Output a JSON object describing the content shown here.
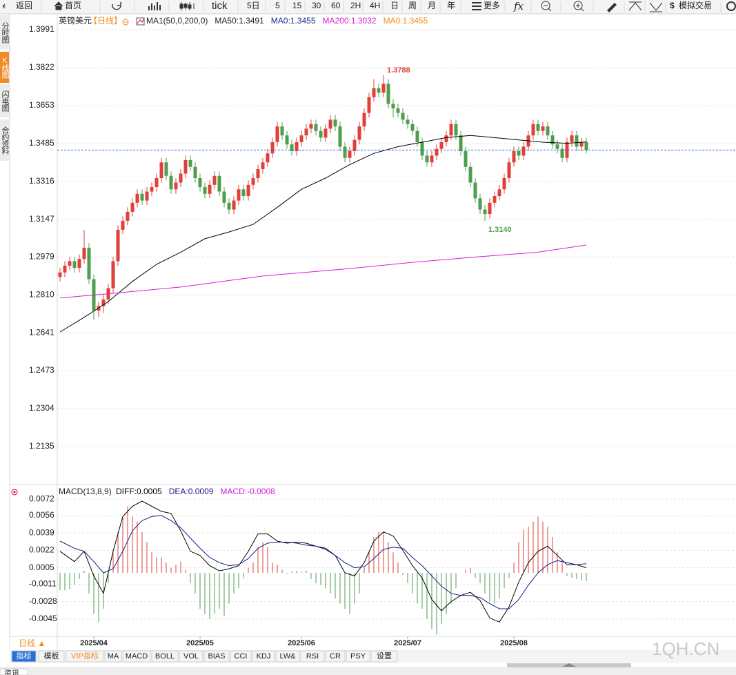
{
  "toolbar": {
    "back": "返回",
    "home": "首页",
    "tick": "tick",
    "periods": [
      "5日",
      "5",
      "15",
      "30",
      "60",
      "2H",
      "4H",
      "日",
      "周",
      "月",
      "年"
    ],
    "more": "更多",
    "sim": "模拟交易"
  },
  "side_tabs": [
    "分时图",
    "K线图",
    "闪电图",
    "合约资料"
  ],
  "chart_data": [
    {
      "type": "candlestick",
      "title": "英镑美元",
      "period": "【日线】",
      "legend": [
        {
          "label": "MA1(50,0,200,0)",
          "color": "#222222"
        },
        {
          "label": "MA50:1.3491",
          "color": "#222222"
        },
        {
          "label": "MA0:1.3455",
          "color": "#1e2a8c"
        },
        {
          "label": "MA200:1.3032",
          "color": "#d41ed4"
        },
        {
          "label": "MA0:1.3455",
          "color": "#f08a24"
        }
      ],
      "up_color": "#e0403a",
      "down_color": "#4e9e4e",
      "xlim": [
        -0.57,
        140
      ],
      "ylim": [
        1.1972,
        1.4046
      ],
      "grid": true,
      "yticks": [
        1.3991,
        1.3822,
        1.3653,
        1.3485,
        1.3316,
        1.3147,
        1.2979,
        {
          "value": 1.281,
          "label": "1.2810"
        },
        1.2641,
        1.2473,
        1.2304,
        1.2135
      ],
      "xticks": [
        {
          "value": 7,
          "label": "2025/04"
        },
        {
          "value": 29,
          "label": "2025/05"
        },
        {
          "value": 50,
          "label": "2025/06"
        },
        {
          "value": 72,
          "label": "2025/07"
        },
        {
          "value": 94,
          "label": "2025/08"
        }
      ],
      "open": [
        1.289,
        1.291,
        1.294,
        1.296,
        1.293,
        1.297,
        1.302,
        1.288,
        1.274,
        1.276,
        1.279,
        1.284,
        1.296,
        1.31,
        1.314,
        1.318,
        1.322,
        1.326,
        1.323,
        1.327,
        1.329,
        1.333,
        1.34,
        1.334,
        1.328,
        1.331,
        1.335,
        1.341,
        1.338,
        1.333,
        1.329,
        1.326,
        1.33,
        1.334,
        1.327,
        1.322,
        1.319,
        1.323,
        1.328,
        1.325,
        1.33,
        1.333,
        1.337,
        1.34,
        1.344,
        1.349,
        1.356,
        1.352,
        1.348,
        1.345,
        1.349,
        1.352,
        1.355,
        1.357,
        1.354,
        1.351,
        1.355,
        1.359,
        1.356,
        1.347,
        1.342,
        1.345,
        1.35,
        1.356,
        1.362,
        1.369,
        1.373,
        1.371,
        1.375,
        1.366,
        1.364,
        1.362,
        1.359,
        1.357,
        1.354,
        1.349,
        1.343,
        1.34,
        1.343,
        1.346,
        1.349,
        1.352,
        1.357,
        1.352,
        1.345,
        1.338,
        1.331,
        1.324,
        1.319,
        1.317,
        1.322,
        1.325,
        1.328,
        1.333,
        1.34,
        1.345,
        1.343,
        1.347,
        1.352,
        1.357,
        1.354,
        1.356,
        1.352,
        1.348,
        1.346,
        1.342,
        1.349,
        1.352,
        1.347,
        1.349
      ],
      "high": [
        1.293,
        1.296,
        1.298,
        1.298,
        1.299,
        1.31,
        1.304,
        1.29,
        1.278,
        1.281,
        1.286,
        1.298,
        1.312,
        1.316,
        1.32,
        1.324,
        1.328,
        1.328,
        1.329,
        1.331,
        1.335,
        1.342,
        1.342,
        1.336,
        1.333,
        1.337,
        1.343,
        1.343,
        1.34,
        1.335,
        1.331,
        1.332,
        1.336,
        1.336,
        1.329,
        1.324,
        1.325,
        1.33,
        1.33,
        1.332,
        1.335,
        1.339,
        1.342,
        1.346,
        1.351,
        1.358,
        1.358,
        1.354,
        1.35,
        1.351,
        1.354,
        1.357,
        1.359,
        1.359,
        1.356,
        1.357,
        1.361,
        1.361,
        1.358,
        1.349,
        1.347,
        1.352,
        1.358,
        1.364,
        1.371,
        1.377,
        1.375,
        1.3788,
        1.377,
        1.368,
        1.366,
        1.364,
        1.361,
        1.359,
        1.356,
        1.351,
        1.345,
        1.345,
        1.348,
        1.351,
        1.354,
        1.359,
        1.359,
        1.354,
        1.347,
        1.34,
        1.333,
        1.326,
        1.321,
        1.324,
        1.327,
        1.33,
        1.335,
        1.342,
        1.347,
        1.347,
        1.349,
        1.354,
        1.359,
        1.359,
        1.358,
        1.358,
        1.354,
        1.35,
        1.348,
        1.351,
        1.354,
        1.354,
        1.351,
        1.351
      ],
      "low": [
        1.287,
        1.289,
        1.292,
        1.291,
        1.291,
        1.295,
        1.286,
        1.27,
        1.271,
        1.273,
        1.277,
        1.282,
        1.294,
        1.308,
        1.312,
        1.316,
        1.32,
        1.321,
        1.321,
        1.325,
        1.327,
        1.331,
        1.332,
        1.326,
        1.326,
        1.329,
        1.333,
        1.336,
        1.331,
        1.327,
        1.324,
        1.324,
        1.328,
        1.325,
        1.32,
        1.317,
        1.317,
        1.321,
        1.323,
        1.323,
        1.328,
        1.331,
        1.335,
        1.338,
        1.342,
        1.347,
        1.35,
        1.346,
        1.343,
        1.343,
        1.347,
        1.35,
        1.353,
        1.352,
        1.349,
        1.349,
        1.353,
        1.354,
        1.345,
        1.34,
        1.34,
        1.343,
        1.348,
        1.354,
        1.36,
        1.367,
        1.369,
        1.369,
        1.364,
        1.36,
        1.36,
        1.357,
        1.355,
        1.352,
        1.347,
        1.341,
        1.338,
        1.338,
        1.341,
        1.344,
        1.347,
        1.35,
        1.35,
        1.343,
        1.336,
        1.329,
        1.322,
        1.317,
        1.314,
        1.315,
        1.32,
        1.323,
        1.326,
        1.331,
        1.338,
        1.341,
        1.341,
        1.345,
        1.35,
        1.352,
        1.352,
        1.35,
        1.346,
        1.344,
        1.34,
        1.34,
        1.347,
        1.345,
        1.345,
        1.344
      ],
      "close": [
        1.291,
        1.294,
        1.296,
        1.293,
        1.297,
        1.302,
        1.288,
        1.274,
        1.276,
        1.279,
        1.284,
        1.296,
        1.31,
        1.314,
        1.318,
        1.322,
        1.326,
        1.323,
        1.327,
        1.329,
        1.333,
        1.34,
        1.334,
        1.328,
        1.331,
        1.335,
        1.341,
        1.338,
        1.333,
        1.329,
        1.326,
        1.33,
        1.334,
        1.327,
        1.322,
        1.319,
        1.323,
        1.328,
        1.325,
        1.33,
        1.333,
        1.337,
        1.34,
        1.344,
        1.349,
        1.356,
        1.352,
        1.348,
        1.345,
        1.349,
        1.352,
        1.355,
        1.357,
        1.354,
        1.351,
        1.355,
        1.359,
        1.356,
        1.347,
        1.342,
        1.345,
        1.35,
        1.356,
        1.362,
        1.369,
        1.373,
        1.371,
        1.375,
        1.366,
        1.364,
        1.362,
        1.359,
        1.357,
        1.354,
        1.349,
        1.343,
        1.34,
        1.343,
        1.346,
        1.349,
        1.352,
        1.357,
        1.352,
        1.345,
        1.338,
        1.331,
        1.324,
        1.319,
        1.317,
        1.322,
        1.325,
        1.328,
        1.333,
        1.34,
        1.345,
        1.343,
        1.347,
        1.352,
        1.357,
        1.354,
        1.356,
        1.352,
        1.348,
        1.346,
        1.342,
        1.349,
        1.352,
        1.347,
        1.349,
        1.3455
      ],
      "overlays": [
        {
          "color": "#000000",
          "x": [
            0,
            5,
            10,
            15,
            20,
            25,
            30,
            35,
            40,
            45,
            50,
            55,
            60,
            65,
            70,
            75,
            80,
            85,
            90,
            95,
            100,
            105,
            109
          ],
          "values": [
            1.2645,
            1.271,
            1.278,
            1.287,
            1.2946,
            1.3,
            1.306,
            1.309,
            1.3124,
            1.32,
            1.328,
            1.333,
            1.339,
            1.344,
            1.347,
            1.349,
            1.351,
            1.352,
            1.351,
            1.35,
            1.349,
            1.3485,
            1.3491
          ]
        },
        {
          "color": "#d41ed4",
          "x": [
            0,
            10,
            25,
            42,
            59,
            73,
            87,
            99,
            109
          ],
          "values": [
            1.2796,
            1.2815,
            1.2845,
            1.2894,
            1.2925,
            1.2955,
            1.298,
            1.3,
            1.3032
          ]
        }
      ],
      "level_line": {
        "value": 1.3455,
        "color": "#2a6fd6"
      },
      "annotations": [
        {
          "label": "1.3788",
          "value": 1.3788,
          "color": "#e0403a"
        },
        {
          "label": "1.3140",
          "value": 1.314,
          "color": "#4e9e4e"
        }
      ]
    },
    {
      "type": "macd",
      "title": "MACD(13,8,9)",
      "xlim": [
        -0.57,
        140
      ],
      "ylim": [
        -0.00606,
        0.00842
      ],
      "grid": true,
      "yticks": [
        0.0072,
        0.0056,
        0.0039,
        0.0022,
        0.0005,
        -0.0011,
        -0.0028,
        -0.0045
      ],
      "up_color": "#e0403a",
      "down_color": "#4e9e4e",
      "series": [
        {
          "name": "DIFF:0.0005",
          "color": "#000000",
          "x": [
            0,
            3,
            5,
            7,
            9,
            11,
            13,
            15,
            17,
            19,
            21,
            23,
            25,
            27,
            29,
            31,
            33,
            35,
            37,
            39,
            41,
            43,
            45,
            47,
            49,
            51,
            53,
            55,
            57,
            59,
            61,
            63,
            65,
            67,
            69,
            71,
            73,
            75,
            77,
            79,
            81,
            83,
            85,
            87,
            89,
            91,
            93,
            95,
            97,
            99,
            101,
            103,
            105,
            107,
            109
          ],
          "values": [
            0.0021,
            0.0011,
            0.0021,
            -0.0003,
            -0.002,
            0.0021,
            0.0055,
            0.0065,
            0.007,
            0.0065,
            0.006,
            0.0058,
            0.0041,
            0.0021,
            0.0017,
            0.0007,
            0.0002,
            0.0004,
            0.0007,
            0.0021,
            0.0038,
            0.0038,
            0.0031,
            0.0029,
            0.003,
            0.0029,
            0.0026,
            0.0024,
            0.0017,
            0,
            -0.0003,
            0.001,
            0.0031,
            0.004,
            0.0036,
            0.0022,
            0.0007,
            -0.0005,
            -0.0026,
            -0.0037,
            -0.0028,
            -0.0022,
            -0.0019,
            -0.0027,
            -0.0044,
            -0.0048,
            -0.0033,
            -0.0009,
            0.001,
            0.0021,
            0.0026,
            0.0017,
            0.0008,
            0.0008,
            0.0005
          ]
        },
        {
          "name": "DEA:0.0009",
          "color": "#1a1a8a",
          "x": [
            0,
            3,
            5,
            7,
            9,
            11,
            13,
            15,
            17,
            19,
            21,
            23,
            25,
            27,
            29,
            31,
            33,
            35,
            37,
            39,
            41,
            43,
            45,
            47,
            49,
            51,
            53,
            55,
            57,
            59,
            61,
            63,
            65,
            67,
            69,
            71,
            73,
            75,
            77,
            79,
            81,
            83,
            85,
            87,
            89,
            91,
            93,
            95,
            97,
            99,
            101,
            103,
            105,
            107,
            109
          ],
          "values": [
            0.0031,
            0.0024,
            0.0021,
            0.0011,
            0,
            0.0004,
            0.0021,
            0.0041,
            0.0051,
            0.0055,
            0.0056,
            0.0051,
            0.0044,
            0.0034,
            0.0024,
            0.0015,
            0.001,
            0.0007,
            0.0008,
            0.0014,
            0.0024,
            0.0029,
            0.003,
            0.003,
            0.0029,
            0.0027,
            0.0026,
            0.0023,
            0.0017,
            0.001,
            0.0005,
            0.0006,
            0.0014,
            0.0023,
            0.0025,
            0.0024,
            0.0015,
            0.0007,
            -0.0003,
            -0.0013,
            -0.002,
            -0.0022,
            -0.0022,
            -0.0024,
            -0.003,
            -0.0035,
            -0.0035,
            -0.0026,
            -0.0012,
            0,
            0.0008,
            0.0012,
            0.001,
            0.0008,
            0.0009
          ]
        },
        {
          "name": "MACD:-0.0008",
          "color": "#d41ed4",
          "values": [
            -0.0017,
            -0.0017,
            -0.0016,
            -0.0012,
            -0.0006,
            0.0002,
            -0.002,
            -0.004,
            -0.0048,
            -0.0035,
            -0.001,
            0.002,
            0.004,
            0.0055,
            0.0065,
            0.0055,
            0.005,
            0.004,
            0.003,
            0.002,
            0.0015,
            0.0015,
            0.001,
            0.0005,
            0.0008,
            0.0011,
            0.0003,
            -0.001,
            -0.002,
            -0.0035,
            -0.004,
            -0.0045,
            -0.004,
            -0.0035,
            -0.0042,
            -0.003,
            -0.002,
            -0.0015,
            -0.0005,
            0.0005,
            0.001,
            0.0025,
            0.003,
            0.0025,
            0.001,
            0.0008,
            0.0003,
            -0.0001,
            0.0001,
            0.0002,
            0.0001,
            0.0002,
            -0.0006,
            -0.001,
            -0.0012,
            -0.0015,
            -0.002,
            -0.0025,
            -0.003,
            -0.0035,
            -0.004,
            -0.003,
            -0.002,
            0.0005,
            0.002,
            0.0035,
            0.004,
            0.004,
            0.003,
            0.002,
            0.001,
            -0.0002,
            -0.001,
            -0.002,
            -0.003,
            -0.0035,
            -0.0045,
            -0.0055,
            -0.006,
            -0.005,
            -0.004,
            -0.003,
            -0.0015,
            0,
            0.0003,
            0.0005,
            -0.0005,
            -0.001,
            -0.002,
            -0.0028,
            -0.003,
            -0.0025,
            -0.0015,
            -0.0005,
            0.001,
            0.003,
            0.0042,
            0.0045,
            0.005,
            0.0055,
            0.005,
            0.0045,
            0.0035,
            0.002,
            0.001,
            -0.0003,
            -0.0005,
            -0.0006,
            -0.0007,
            -0.0008
          ]
        }
      ]
    }
  ],
  "footer": {
    "period": "日线 ▲",
    "watermark": "1QH.CN",
    "news": "资讯",
    "tabs": [
      "指标",
      "模板",
      "VIP指标",
      "MA",
      "MACD",
      "BOLL",
      "VOL",
      "BIAS",
      "CCI",
      "KDJ",
      "LW&",
      "RSI",
      "CR",
      "PSY",
      "设置"
    ]
  }
}
